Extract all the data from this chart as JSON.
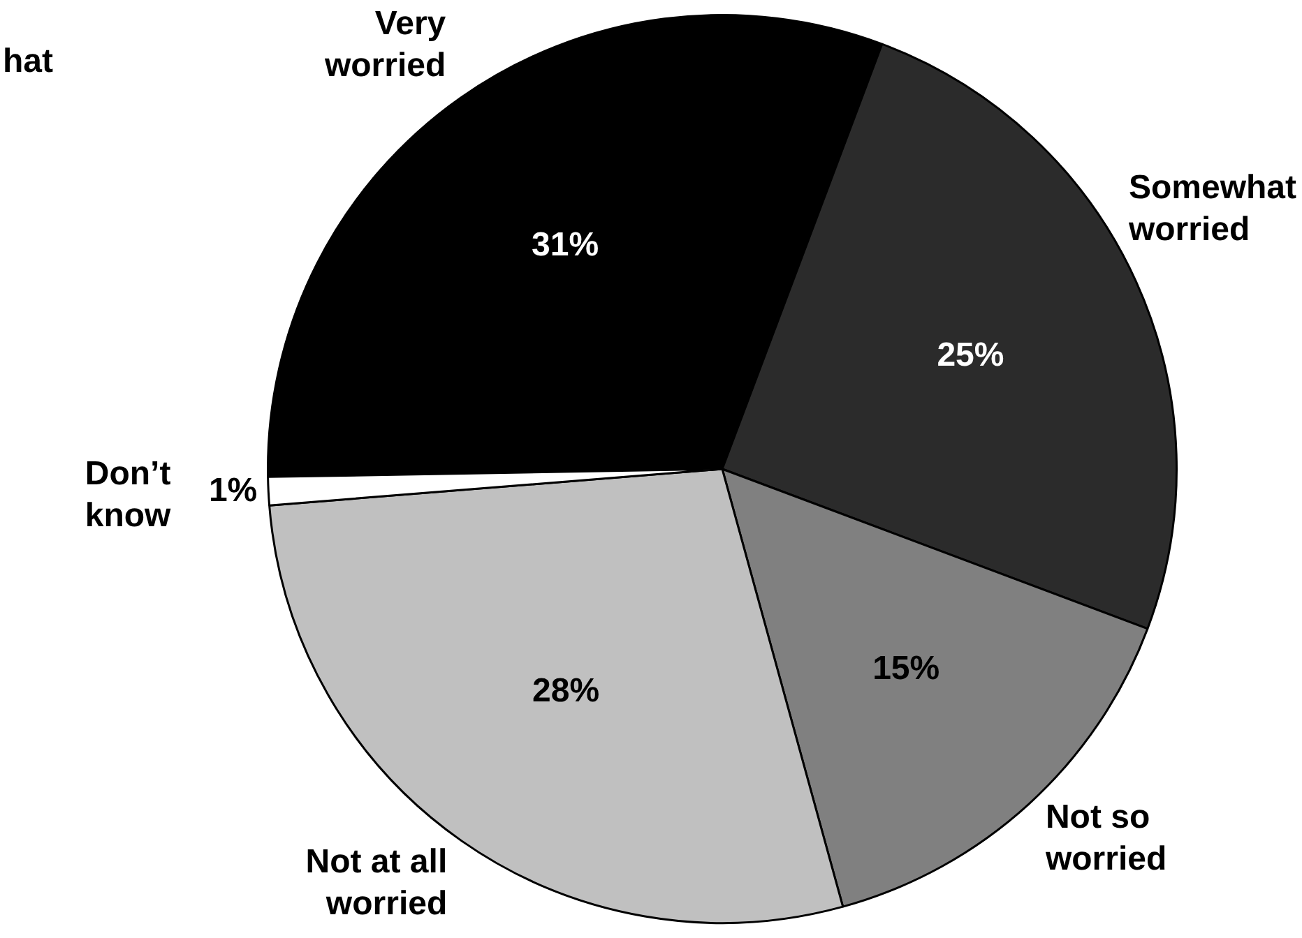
{
  "chart_data": {
    "type": "pie",
    "categories": [
      "Very worried",
      "Somewhat worried",
      "Not so worried",
      "Not at all worried",
      "Don’t know"
    ],
    "values": [
      31,
      25,
      15,
      28,
      1
    ],
    "value_labels": [
      "31%",
      "25%",
      "15%",
      "28%",
      "1%"
    ],
    "colors": [
      "#000000",
      "#2b2b2b",
      "#808080",
      "#c0c0c0",
      "#ffffff"
    ],
    "annotations": [
      "hat"
    ]
  }
}
